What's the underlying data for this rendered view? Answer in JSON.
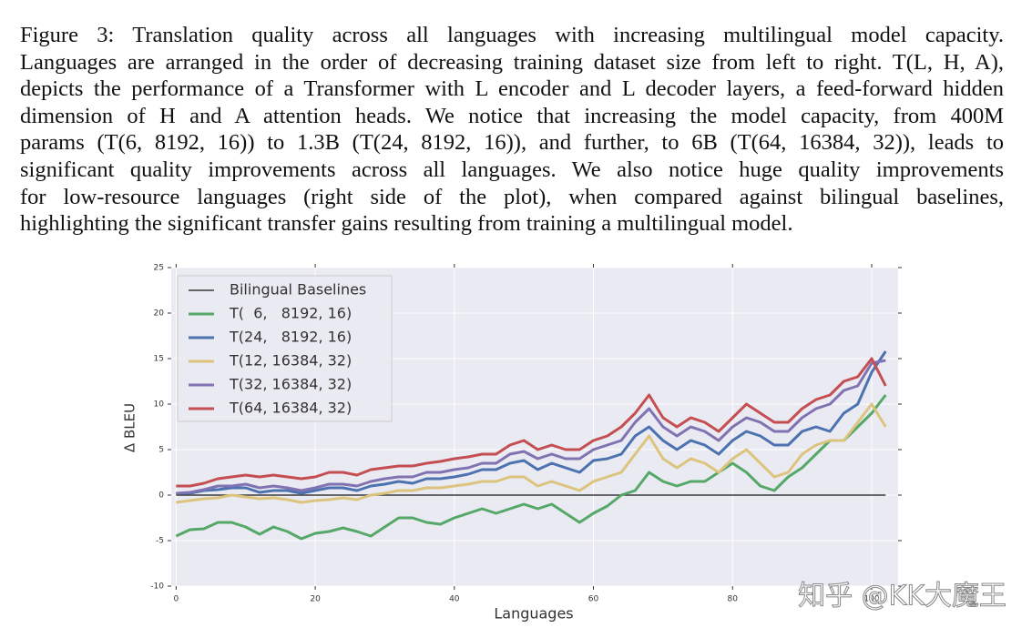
{
  "caption": {
    "lines": [
      "Figure 3: Translation quality across all languages with increasing multilingual model capacity.",
      "Languages are arranged in the order of decreasing training dataset size from left to right. T(L, H, A),",
      "depicts the performance of a Transformer with L encoder and L decoder layers, a feed-forward hidden",
      "dimension of H and A attention heads. We notice that increasing the model capacity, from 400M",
      "params (T(6, 8192, 16)) to 1.3B (T(24, 8192, 16)), and further, to 6B (T(64, 16384, 32)), leads to",
      "significant quality improvements across all languages. We also notice huge quality improvements",
      "for low-resource languages (right side of the plot), when compared against bilingual baselines,",
      "highlighting the significant transfer gains resulting from training a multilingual model."
    ]
  },
  "watermark": "知乎 @KK大魔王",
  "chart_data": {
    "type": "line",
    "x_label": "Languages",
    "y_label": "Δ BLEU",
    "xlim": [
      -0.7,
      103.8
    ],
    "ylim": [
      -10,
      25
    ],
    "xticks": [
      0,
      20,
      40,
      60,
      80,
      100
    ],
    "yticks": [
      -10,
      -5,
      0,
      5,
      10,
      15,
      20,
      25
    ],
    "grid": true,
    "legend": "upper left",
    "x": [
      0,
      2,
      4,
      6,
      8,
      10,
      12,
      14,
      16,
      18,
      20,
      22,
      24,
      26,
      28,
      30,
      32,
      34,
      36,
      38,
      40,
      42,
      44,
      46,
      48,
      50,
      52,
      54,
      56,
      58,
      60,
      62,
      64,
      66,
      68,
      70,
      72,
      74,
      76,
      78,
      80,
      82,
      84,
      86,
      88,
      90,
      92,
      94,
      96,
      98,
      100,
      102
    ],
    "series": [
      {
        "name": "Bilingual Baselines",
        "color": "#3a3a3a",
        "values": [
          0,
          0,
          0,
          0,
          0,
          0,
          0,
          0,
          0,
          0,
          0,
          0,
          0,
          0,
          0,
          0,
          0,
          0,
          0,
          0,
          0,
          0,
          0,
          0,
          0,
          0,
          0,
          0,
          0,
          0,
          0,
          0,
          0,
          0,
          0,
          0,
          0,
          0,
          0,
          0,
          0,
          0,
          0,
          0,
          0,
          0,
          0,
          0,
          0,
          0,
          0,
          0
        ]
      },
      {
        "name": "T(  6,   8192, 16)",
        "color": "#55a868",
        "values": [
          -4.5,
          -3.8,
          -3.7,
          -3,
          -3,
          -3.5,
          -4.3,
          -3.5,
          -4,
          -4.8,
          -4.2,
          -4,
          -3.6,
          -4,
          -4.5,
          -3.5,
          -2.5,
          -2.5,
          -3,
          -3.2,
          -2.5,
          -2,
          -1.5,
          -2,
          -1.5,
          -1,
          -1.5,
          -1,
          -2,
          -3,
          -2,
          -1.2,
          0,
          0.5,
          2.5,
          1.5,
          1,
          1.5,
          1.5,
          2.5,
          3.5,
          2.5,
          1,
          0.5,
          2,
          3,
          4.5,
          6,
          6,
          7.5,
          9,
          11
        ]
      },
      {
        "name": "T(24,   8192, 16)",
        "color": "#4c72b0",
        "values": [
          0.2,
          0.2,
          0.5,
          0.6,
          0.8,
          0.8,
          0.3,
          0.5,
          0.5,
          0.2,
          0.5,
          0.8,
          0.8,
          0.5,
          1,
          1.2,
          1.5,
          1.3,
          1.8,
          1.8,
          2,
          2.3,
          2.8,
          2.8,
          3.5,
          3.8,
          2.8,
          3.5,
          3,
          2.5,
          3.8,
          4,
          4.5,
          6.5,
          7.5,
          6,
          5,
          6,
          5.5,
          4.5,
          6,
          7,
          6.5,
          5.5,
          5.5,
          7,
          7.5,
          7,
          9,
          10,
          13.5,
          15.8
        ]
      },
      {
        "name": "T(12, 16384, 32)",
        "color": "#dcc47e",
        "values": [
          -0.8,
          -0.6,
          -0.4,
          -0.3,
          0,
          -0.2,
          -0.4,
          -0.3,
          -0.5,
          -0.8,
          -0.6,
          -0.5,
          -0.3,
          -0.5,
          0,
          0.2,
          0.5,
          0.5,
          0.8,
          0.8,
          1,
          1.2,
          1.5,
          1.5,
          2,
          2,
          1,
          1.5,
          1,
          0.5,
          1.5,
          2,
          2.5,
          4.5,
          6.5,
          4,
          3,
          4,
          3.5,
          2.5,
          4,
          5,
          3.5,
          2,
          2.5,
          4.5,
          5.5,
          6,
          6,
          8,
          10,
          7.5
        ]
      },
      {
        "name": "T(32, 16384, 32)",
        "color": "#8172b2",
        "values": [
          0.2,
          0.3,
          0.6,
          1,
          1,
          1.2,
          0.8,
          1,
          0.8,
          0.5,
          0.8,
          1.2,
          1.2,
          1,
          1.5,
          1.8,
          2,
          2,
          2.5,
          2.5,
          2.8,
          3,
          3.5,
          3.5,
          4.5,
          4.8,
          4,
          4.5,
          4,
          4,
          5,
          5.5,
          6,
          8,
          9.5,
          7.5,
          6.5,
          7.5,
          7,
          6,
          7.5,
          8.5,
          8,
          7,
          7,
          8.5,
          9.5,
          10,
          11.5,
          12,
          14.5,
          14.8
        ]
      },
      {
        "name": "T(64, 16384, 32)",
        "color": "#c44e52",
        "values": [
          1,
          1,
          1.3,
          1.8,
          2,
          2.2,
          2,
          2.2,
          2,
          1.8,
          2,
          2.5,
          2.5,
          2.2,
          2.8,
          3,
          3.2,
          3.2,
          3.5,
          3.7,
          4,
          4.2,
          4.5,
          4.5,
          5.5,
          6,
          5,
          5.5,
          5,
          5,
          6,
          6.5,
          7.5,
          9,
          11,
          8.5,
          7.5,
          8.5,
          8,
          7,
          8.5,
          10,
          9,
          8,
          8,
          9.5,
          10.5,
          11,
          12.5,
          13,
          15,
          12
        ]
      }
    ]
  }
}
